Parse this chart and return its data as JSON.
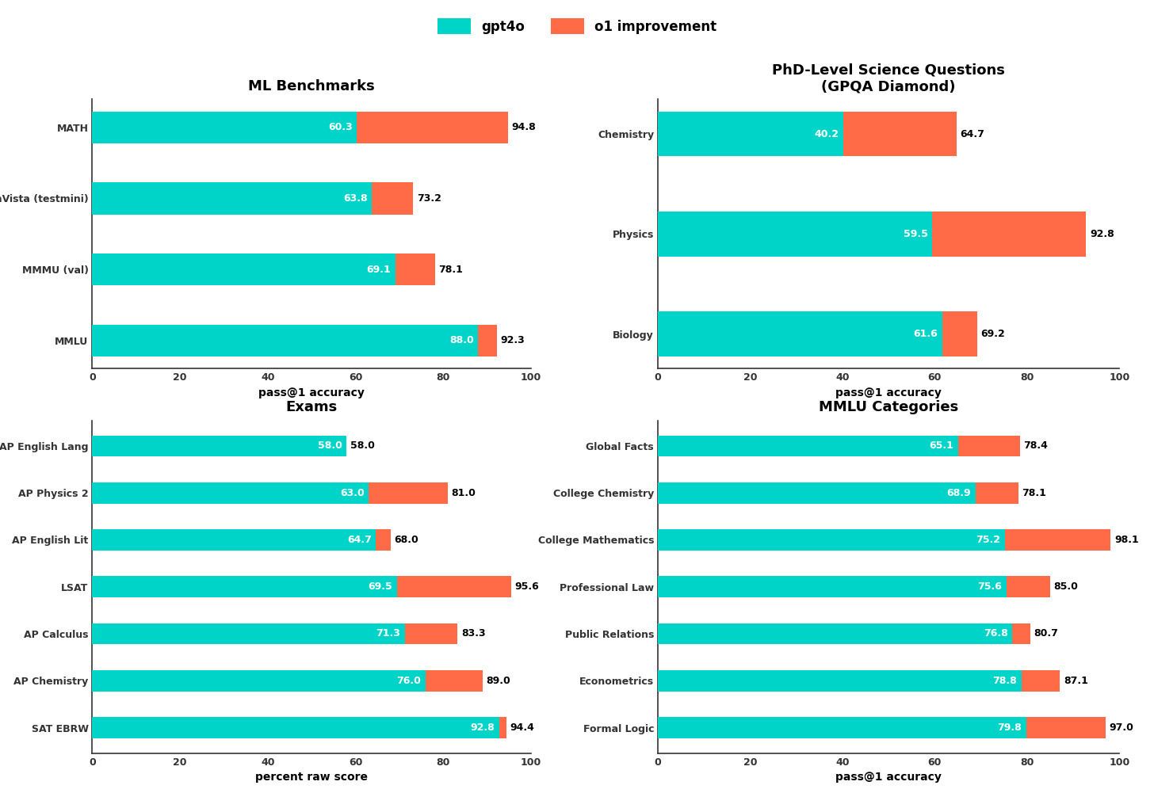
{
  "fig_bg": "#ffffff",
  "ax_bg": "#ffffff",
  "gpt4o_color": "#00d4c8",
  "o1_color": "#ff6b47",
  "label_color_inside": "#ffffff",
  "label_color_outside": "#000000",
  "spine_color": "#333333",
  "tick_color": "#333333",
  "subplots": [
    {
      "title": "ML Benchmarks",
      "xlabel": "pass@1 accuracy",
      "categories": [
        "MATH",
        "MathVista (testmini)",
        "MMMU (val)",
        "MMLU"
      ],
      "gpt4o_vals": [
        60.3,
        63.8,
        69.1,
        88.0
      ],
      "o1_vals": [
        94.8,
        73.2,
        78.1,
        92.3
      ]
    },
    {
      "title": "PhD-Level Science Questions\n(GPQA Diamond)",
      "xlabel": "pass@1 accuracy",
      "categories": [
        "Chemistry",
        "Physics",
        "Biology"
      ],
      "gpt4o_vals": [
        40.2,
        59.5,
        61.6
      ],
      "o1_vals": [
        64.7,
        92.8,
        69.2
      ]
    },
    {
      "title": "Exams",
      "xlabel": "percent raw score",
      "categories": [
        "AP English Lang",
        "AP Physics 2",
        "AP English Lit",
        "LSAT",
        "AP Calculus",
        "AP Chemistry",
        "SAT EBRW"
      ],
      "gpt4o_vals": [
        58.0,
        63.0,
        64.7,
        69.5,
        71.3,
        76.0,
        92.8
      ],
      "o1_vals": [
        58.0,
        81.0,
        68.0,
        95.6,
        83.3,
        89.0,
        94.4
      ]
    },
    {
      "title": "MMLU Categories",
      "xlabel": "pass@1 accuracy",
      "categories": [
        "Global Facts",
        "College Chemistry",
        "College Mathematics",
        "Professional Law",
        "Public Relations",
        "Econometrics",
        "Formal Logic"
      ],
      "gpt4o_vals": [
        65.1,
        68.9,
        75.2,
        75.6,
        76.8,
        78.8,
        79.8
      ],
      "o1_vals": [
        78.4,
        78.1,
        98.1,
        85.0,
        80.7,
        87.1,
        97.0
      ]
    }
  ],
  "legend_labels": [
    "gpt4o",
    "o1 improvement"
  ],
  "title_fontsize": 13,
  "label_fontsize": 9,
  "tick_fontsize": 9,
  "bar_height": 0.45,
  "xlim": [
    0,
    100
  ],
  "xticks": [
    0,
    20,
    40,
    60,
    80,
    100
  ]
}
